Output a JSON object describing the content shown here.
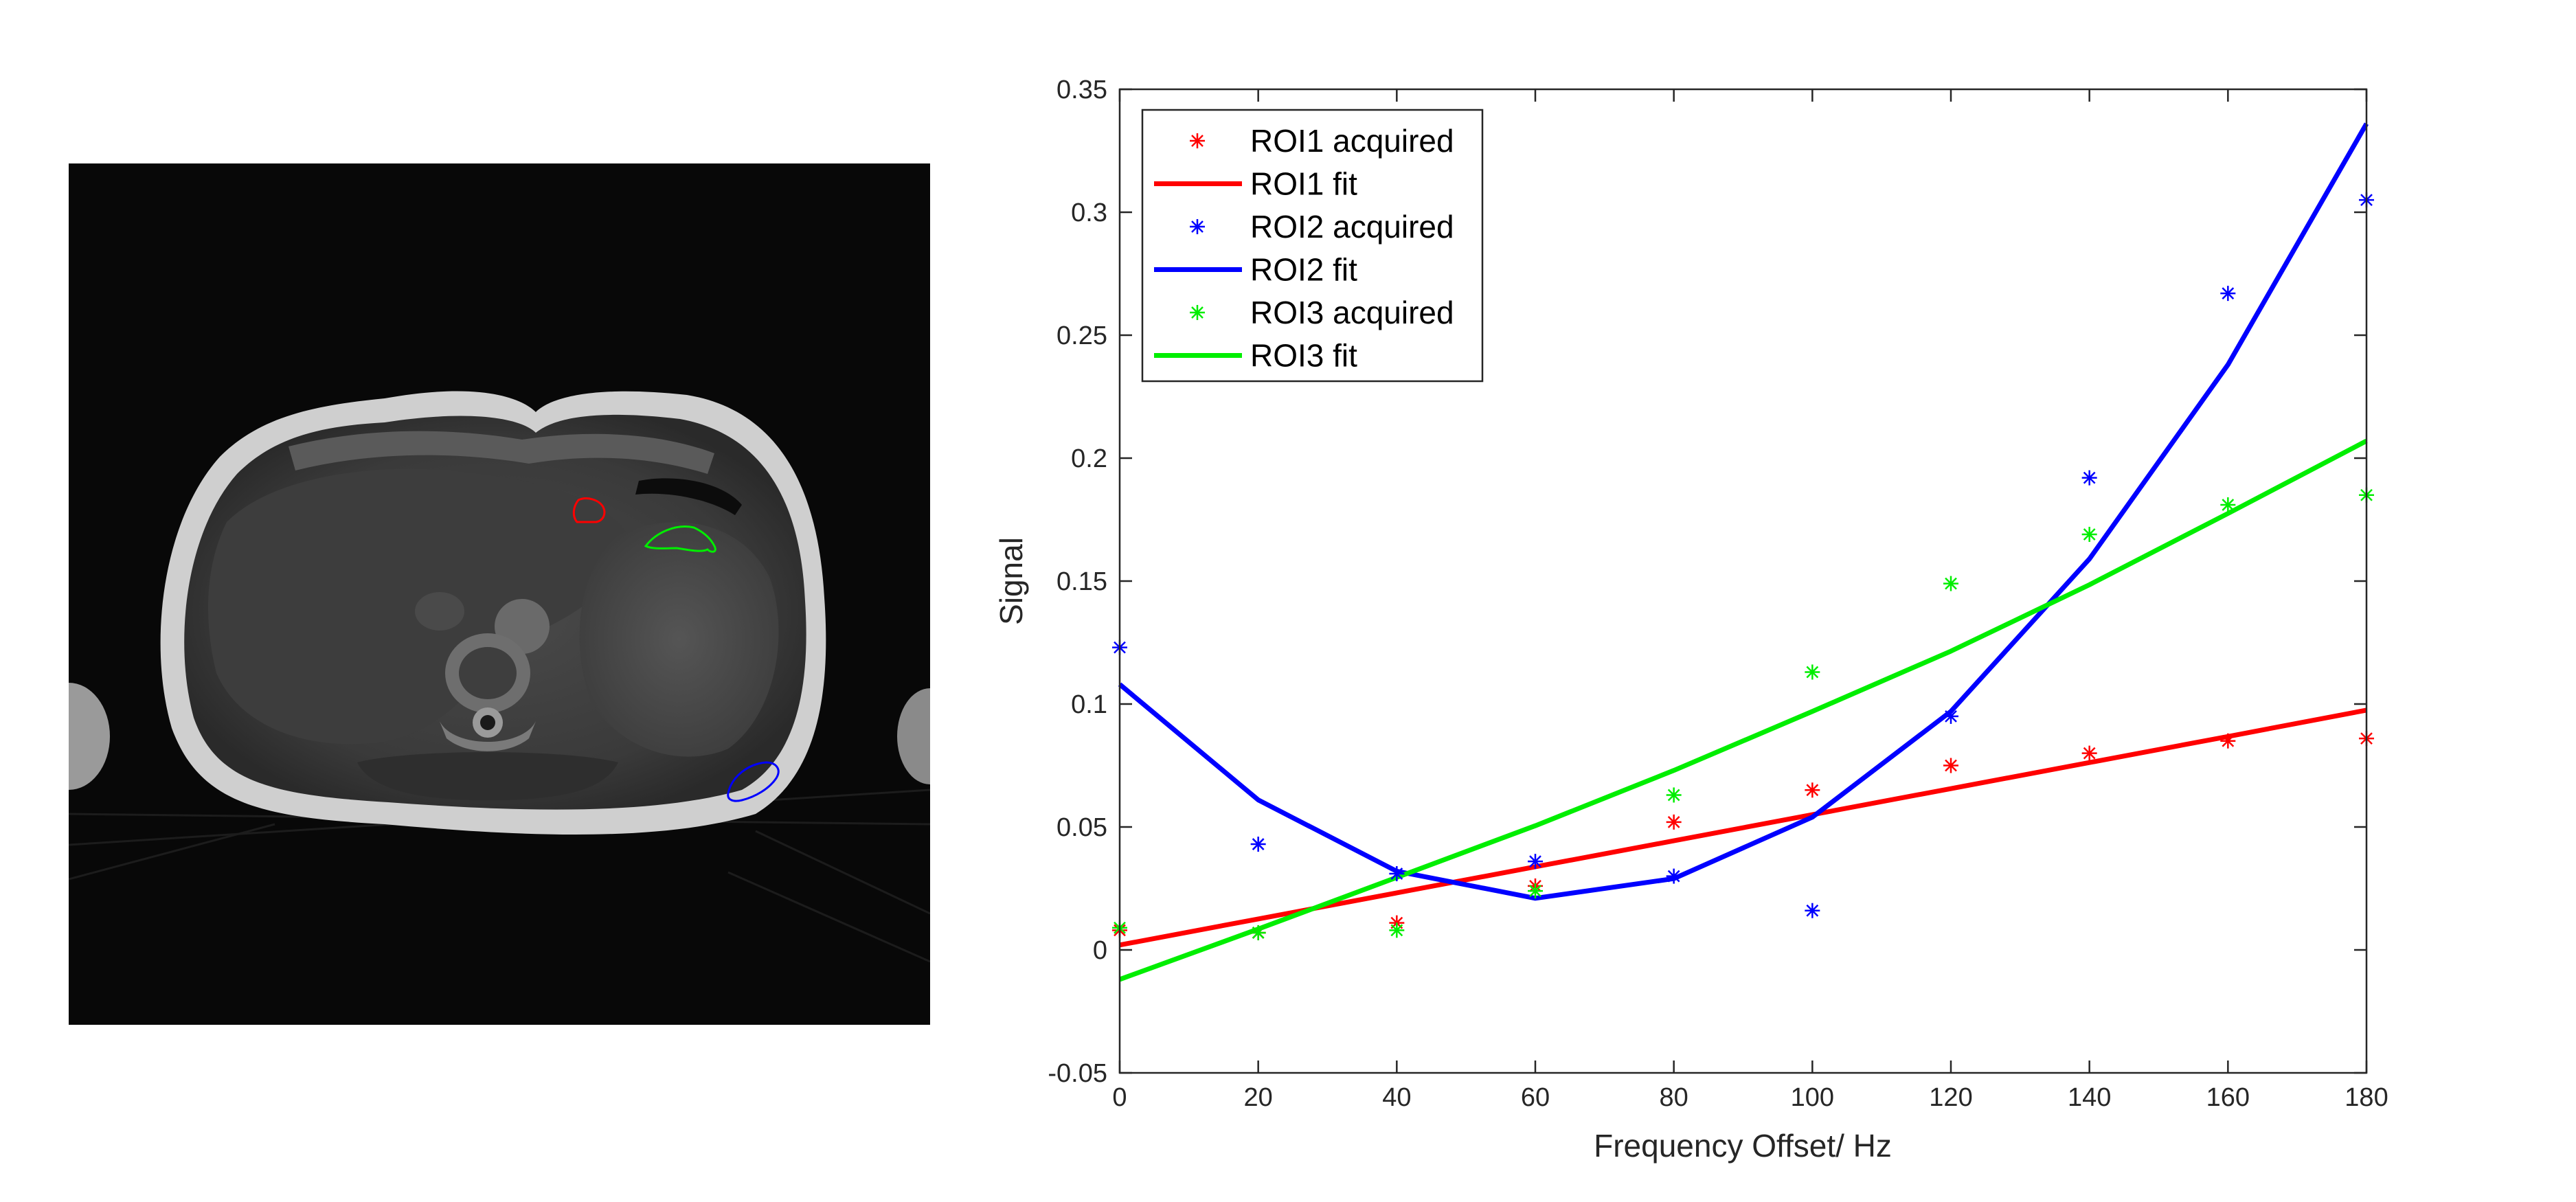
{
  "colors": {
    "roi1": "#ff0000",
    "roi2": "#0000ff",
    "roi3": "#00ee00",
    "axis": "#262626"
  },
  "mri_panel": {
    "name": "axial-abdominal-mri",
    "rois": [
      {
        "name": "ROI1",
        "color": "#ff0000"
      },
      {
        "name": "ROI2",
        "color": "#0000ff"
      },
      {
        "name": "ROI3",
        "color": "#00ee00"
      }
    ]
  },
  "chart_data": {
    "type": "line",
    "title": "",
    "xlabel": "Frequency Offset/ Hz",
    "ylabel": "Signal",
    "xlim": [
      0,
      180
    ],
    "ylim": [
      -0.05,
      0.35
    ],
    "xticks": [
      0,
      20,
      40,
      60,
      80,
      100,
      120,
      140,
      160,
      180
    ],
    "xtick_labels": [
      "0",
      "20",
      "40",
      "60",
      "80",
      "100",
      "120",
      "140",
      "160",
      "180"
    ],
    "yticks": [
      -0.05,
      0,
      0.05,
      0.1,
      0.15,
      0.2,
      0.25,
      0.3,
      0.35
    ],
    "ytick_labels": [
      "-0.05",
      "0",
      "0.05",
      "0.1",
      "0.15",
      "0.2",
      "0.25",
      "0.3",
      "0.35"
    ],
    "grid": false,
    "legend_position": "top-left",
    "x": [
      0,
      20,
      40,
      60,
      80,
      100,
      120,
      140,
      160,
      180
    ],
    "series": [
      {
        "name": "ROI1 acquired",
        "style": "marker",
        "color": "#ff0000",
        "values": [
          0.008,
          0.007,
          0.011,
          0.026,
          0.052,
          0.065,
          0.075,
          0.08,
          0.085,
          0.086
        ]
      },
      {
        "name": "ROI1 fit",
        "style": "line",
        "color": "#ff0000",
        "values": [
          0.002,
          0.0126,
          0.0232,
          0.0338,
          0.0444,
          0.055,
          0.0656,
          0.0762,
          0.0868,
          0.0975
        ]
      },
      {
        "name": "ROI2 acquired",
        "style": "marker",
        "color": "#0000ff",
        "values": [
          0.123,
          0.043,
          0.031,
          0.036,
          0.03,
          0.016,
          0.095,
          0.192,
          0.267,
          0.305
        ]
      },
      {
        "name": "ROI2 fit",
        "style": "line",
        "color": "#0000ff",
        "values": [
          0.108,
          0.061,
          0.032,
          0.021,
          0.029,
          0.054,
          0.097,
          0.159,
          0.238,
          0.336
        ]
      },
      {
        "name": "ROI3 acquired",
        "style": "marker",
        "color": "#00ee00",
        "values": [
          0.009,
          0.007,
          0.008,
          0.024,
          0.063,
          0.113,
          0.149,
          0.169,
          0.181,
          0.185
        ]
      },
      {
        "name": "ROI3 fit",
        "style": "line",
        "color": "#00ee00",
        "values": [
          -0.012,
          0.0085,
          0.0295,
          0.0505,
          0.073,
          0.097,
          0.1215,
          0.1485,
          0.1775,
          0.207
        ]
      }
    ]
  }
}
